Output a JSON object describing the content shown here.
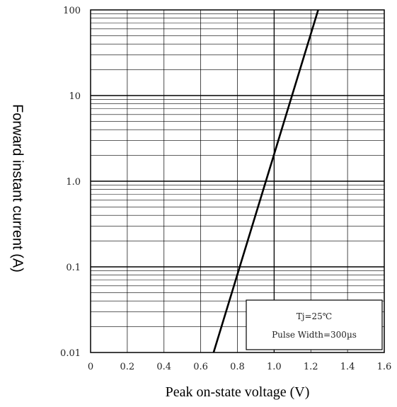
{
  "chart_data": {
    "type": "line",
    "xlabel": "Peak on-state voltage (V)",
    "ylabel": "Forward instant current (A)",
    "x_ticks": [
      "0",
      "0.2",
      "0.4",
      "0.6",
      "0.8",
      "1.0",
      "1.2",
      "1.4",
      "1.6"
    ],
    "y_ticks": [
      "0.01",
      "0.1",
      "1.0",
      "10",
      "100"
    ],
    "xlim": [
      0,
      1.6
    ],
    "ylim": [
      0.01,
      100
    ],
    "y_scale": "log",
    "grid": true,
    "series": [
      {
        "points": [
          {
            "x": 0.67,
            "y": 0.01
          },
          {
            "x": 1.24,
            "y": 100
          }
        ]
      }
    ],
    "annotation": {
      "line1": "Tj=25℃",
      "line2": "Pulse Width=300µs",
      "placement": "bottom-right"
    }
  }
}
